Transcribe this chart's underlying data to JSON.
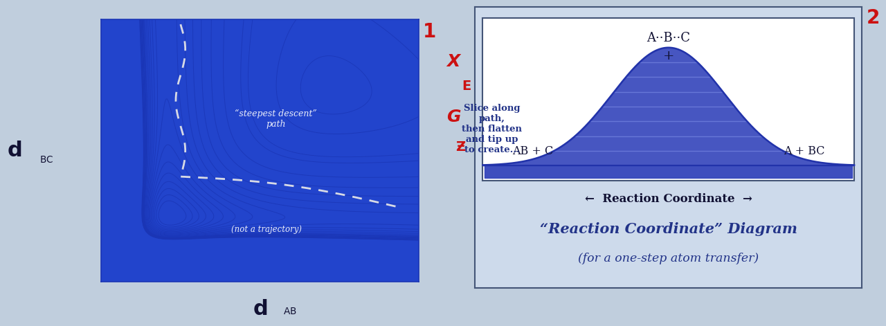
{
  "bg_color": "#c0cedd",
  "panel1_bg": "#2244cc",
  "panel2_bg": "#cddaeb",
  "panel2_inner_bg": "#e8eef8",
  "panel2_fill_dark": "#3344bb",
  "panel2_fill_mid": "#4455cc",
  "panel2_fill_light": "#6677dd",
  "label_red": "#cc1111",
  "text_dark_blue": "#223388",
  "text_black": "#111133",
  "contour_dark": "#1a35b5",
  "dashed_white": "#e8e8e8",
  "num1": "1",
  "num2": "2",
  "steepest_text": "“steepest descent”\npath",
  "not_traj_text": "(not a trajectory)",
  "slice_text": "Slice along\npath,\nthen flatten\nand tip up\nto create...",
  "abc_label": "A··B··C",
  "plus_label": "+",
  "ab_c_label": "AB + C",
  "a_bc_label": "A + BC",
  "rc_label": "←  Reaction Coordinate  →",
  "title_line1": "“Reaction Coordinate” Diagram",
  "title_line2": "(for a one-step atom transfer)"
}
